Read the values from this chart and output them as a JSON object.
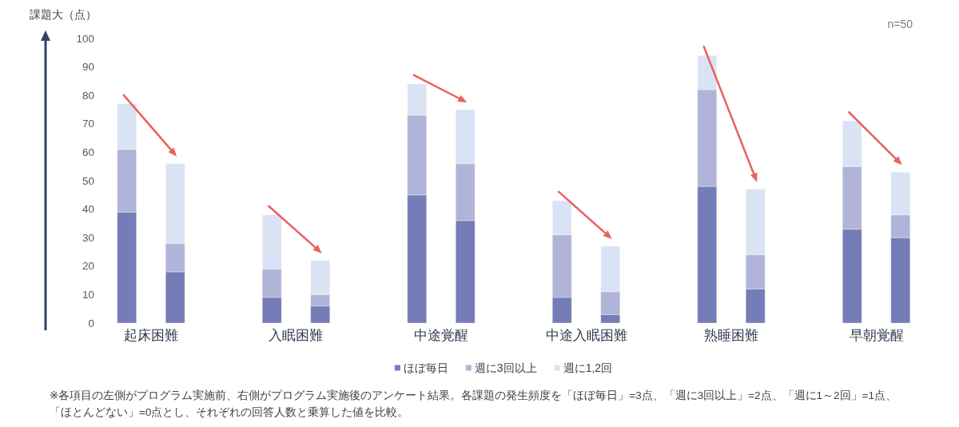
{
  "chart_data": {
    "type": "bar",
    "stacked": true,
    "ylabel": "課題大（点）",
    "categories": [
      null,
      "起床困難",
      null,
      null,
      null,
      null,
      null,
      "入眠困難",
      null,
      null,
      null,
      null,
      null,
      "中途覚醒",
      null,
      null,
      null,
      null,
      null,
      "中途入眠困難",
      null,
      null,
      null,
      null,
      null,
      "熟睡困難",
      null,
      null,
      null,
      null,
      null,
      "早朝覚醒",
      null
    ],
    "series": [
      {
        "name": "ほぼ毎日",
        "color": "#757db8",
        "values": [
          39,
          null,
          18,
          null,
          null,
          null,
          9,
          null,
          6,
          null,
          null,
          null,
          45,
          null,
          36,
          null,
          null,
          null,
          9,
          null,
          3,
          null,
          null,
          null,
          48,
          null,
          12,
          null,
          null,
          null,
          33,
          null,
          30
        ]
      },
      {
        "name": "週に3回以上",
        "color": "#b1b4d8",
        "values": [
          22,
          null,
          10,
          null,
          null,
          null,
          10,
          null,
          4,
          null,
          null,
          null,
          28,
          null,
          20,
          null,
          null,
          null,
          22,
          null,
          8,
          null,
          null,
          null,
          34,
          null,
          12,
          null,
          null,
          null,
          22,
          null,
          8
        ]
      },
      {
        "name": "週に1,2回",
        "color": "#dae3f3",
        "values": [
          16,
          null,
          28,
          null,
          null,
          null,
          19,
          null,
          12,
          null,
          null,
          null,
          11,
          null,
          19,
          null,
          null,
          null,
          12,
          null,
          16,
          null,
          null,
          null,
          12,
          null,
          23,
          null,
          null,
          null,
          16,
          null,
          15
        ]
      }
    ],
    "ylim": [
      0,
      100
    ],
    "yticks": [
      0,
      10,
      20,
      30,
      40,
      50,
      60,
      70,
      80,
      90,
      100
    ],
    "grid": false,
    "legend": "bottom",
    "annotations": [
      "n=50",
      "※各項目の左側がプログラム実施前、右側がプログラム実施後のアンケート結果。各課題の発生頻度を「ほぼ毎日」=3点、「週に3回以上」=2点、「週に1～2回」=1点、「ほとんどない」=0点とし、それぞれの回答人数と乗算した値を比較。"
    ]
  }
}
